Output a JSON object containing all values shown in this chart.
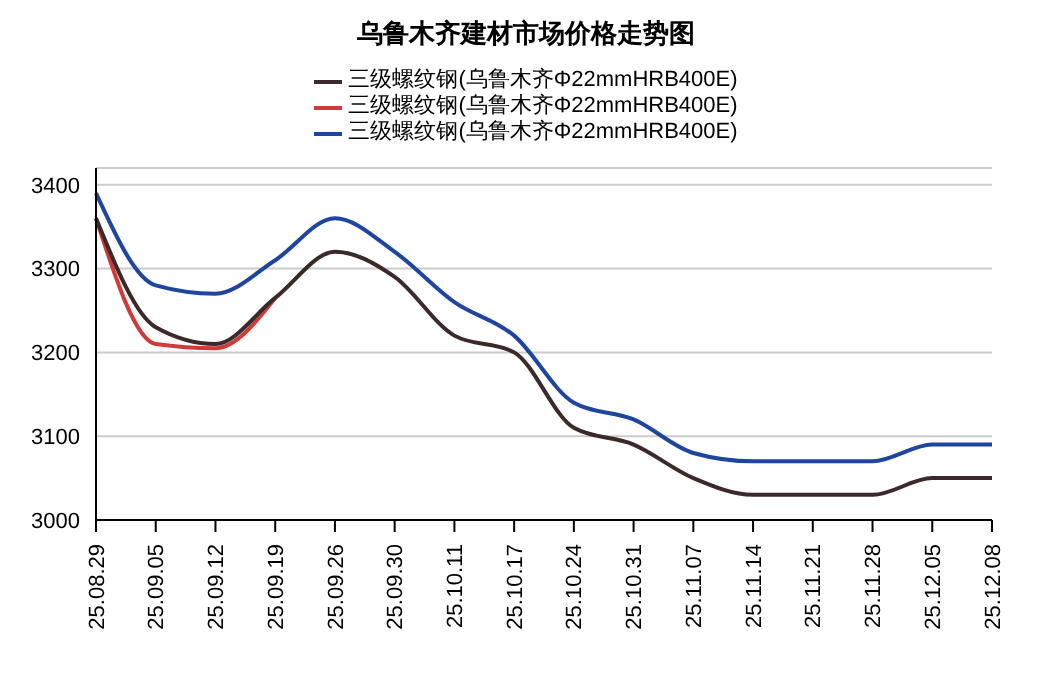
{
  "chart_data": {
    "type": "line",
    "title": "乌鲁木齐建材市场价格走势图",
    "categories": [
      "25.08.29",
      "25.09.05",
      "25.09.12",
      "25.09.19",
      "25.09.26",
      "25.09.30",
      "25.10.11",
      "25.10.17",
      "25.10.24",
      "25.10.31",
      "25.11.07",
      "25.11.14",
      "25.11.21",
      "25.11.28",
      "25.12.05",
      "25.12.08"
    ],
    "series": [
      {
        "name": "三级螺纹钢(乌鲁木齐Φ22mmHRB400E)",
        "color": "#3c2a2a",
        "values": [
          3360,
          3230,
          3210,
          3265,
          3320,
          3290,
          3220,
          3200,
          3110,
          3090,
          3050,
          3030,
          3030,
          3030,
          3050,
          3050
        ]
      },
      {
        "name": "三级螺纹钢(乌鲁木齐Φ22mmHRB400E)",
        "color": "#d03a3a",
        "values": [
          3360,
          3210,
          3205,
          3265,
          null,
          null,
          null,
          null,
          null,
          null,
          null,
          null,
          null,
          null,
          null,
          null
        ]
      },
      {
        "name": "三级螺纹钢(乌鲁木齐Φ22mmHRB400E)",
        "color": "#1f45a0",
        "values": [
          3390,
          3280,
          3270,
          3310,
          3360,
          3320,
          3260,
          3220,
          3140,
          3120,
          3080,
          3070,
          3070,
          3070,
          3090,
          3090
        ]
      }
    ],
    "ylim": [
      3000,
      3420
    ],
    "yticks": [
      3000,
      3100,
      3200,
      3300,
      3400
    ],
    "grid": "y",
    "legend": "top",
    "marker": "none",
    "line_style": "solid"
  }
}
